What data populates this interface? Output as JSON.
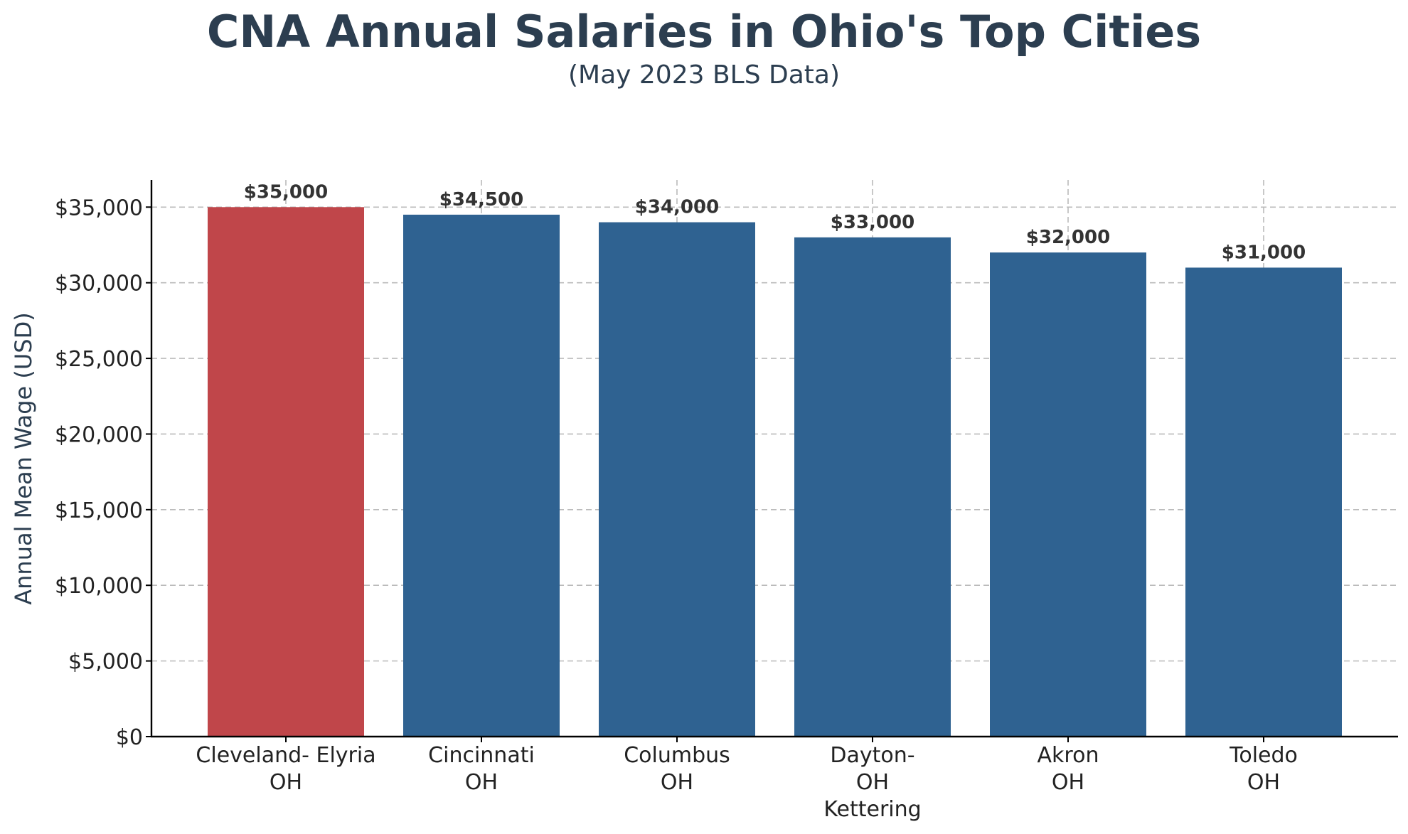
{
  "chart_data": {
    "type": "bar",
    "title": "CNA Annual Salaries in Ohio's Top Cities",
    "subtitle": "(May 2023 BLS Data)",
    "xlabel": "",
    "ylabel": "Annual Mean Wage (USD)",
    "categories": [
      [
        "Cleveland- Elyria",
        "OH"
      ],
      [
        "Cincinnati",
        "OH"
      ],
      [
        "Columbus",
        "OH"
      ],
      [
        "Dayton-",
        "OH",
        "Kettering"
      ],
      [
        "Akron",
        "OH"
      ],
      [
        "Toledo",
        "OH"
      ]
    ],
    "values": [
      35000,
      34500,
      34000,
      33000,
      32000,
      31000
    ],
    "data_labels": [
      "$35,000",
      "$34,500",
      "$34,000",
      "$33,000",
      "$32,000",
      "$31,000"
    ],
    "bar_colors": [
      "#c0464a",
      "#2f6291",
      "#2f6291",
      "#2f6291",
      "#2f6291",
      "#2f6291"
    ],
    "ylim": [
      0,
      36800
    ],
    "yticks": [
      0,
      5000,
      10000,
      15000,
      20000,
      25000,
      30000,
      35000
    ],
    "ytick_labels": [
      "$0",
      "$5,000",
      "$10,000",
      "$15,000",
      "$20,000",
      "$25,000",
      "$30,000",
      "$35,000"
    ],
    "grid": true,
    "grid_style": "dashed"
  },
  "colors": {
    "highlight": "#c0464a",
    "bar": "#2f6291",
    "title": "#2c3e50",
    "grid": "#bbbbbb"
  }
}
